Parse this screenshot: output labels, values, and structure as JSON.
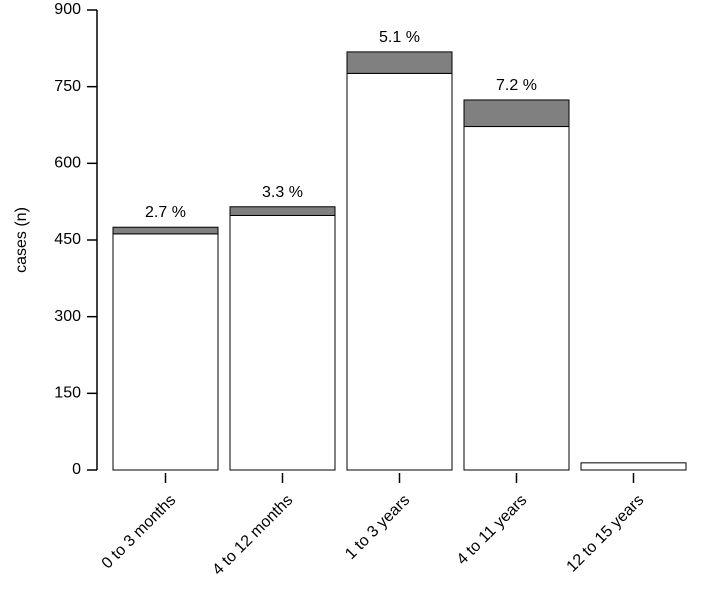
{
  "chart_data": {
    "type": "stacked_bar",
    "y_label": "cases (n)",
    "categories": [
      "0 to 3 months",
      "4 to 12 months",
      "1 to 3 years",
      "4 to 11 years",
      "12 to 15 years"
    ],
    "series": [
      {
        "color": "#ffffff",
        "values": [
          462,
          498,
          776,
          672,
          14
        ]
      },
      {
        "color": "#808080",
        "values": [
          13,
          17,
          42,
          52,
          0
        ]
      }
    ],
    "annotations": [
      "2.7 %",
      "3.3 %",
      "5.1 %",
      "7.2 %",
      null
    ],
    "ylim": [
      0,
      900
    ],
    "yticks": [
      0,
      150,
      300,
      450,
      600,
      750,
      900
    ]
  }
}
